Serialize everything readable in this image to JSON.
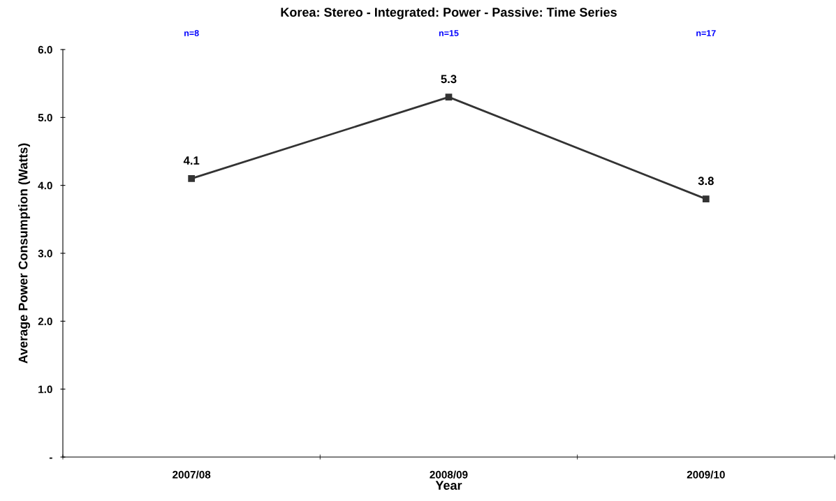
{
  "chart_data": {
    "type": "line",
    "title": "Korea: Stereo - Integrated: Power - Passive: Time Series",
    "xlabel": "Year",
    "ylabel": "Average Power Consumption (Watts)",
    "categories": [
      "2007/08",
      "2008/09",
      "2009/10"
    ],
    "series": [
      {
        "color": "#333333",
        "values": [
          4.1,
          5.3,
          3.8
        ]
      }
    ],
    "ylim": [
      0,
      6
    ],
    "yticks": [
      {
        "value": 0,
        "label": "-"
      },
      {
        "value": 1,
        "label": "1.0"
      },
      {
        "value": 2,
        "label": "2.0"
      },
      {
        "value": 3,
        "label": "3.0"
      },
      {
        "value": 4,
        "label": "4.0"
      },
      {
        "value": 5,
        "label": "5.0"
      },
      {
        "value": 6,
        "label": "6.0"
      }
    ],
    "marker": "square",
    "line_style": "solid",
    "grid": false,
    "legend": false,
    "data_labels": true,
    "annotations": [
      "n=8",
      "n=15",
      "n=17"
    ]
  }
}
